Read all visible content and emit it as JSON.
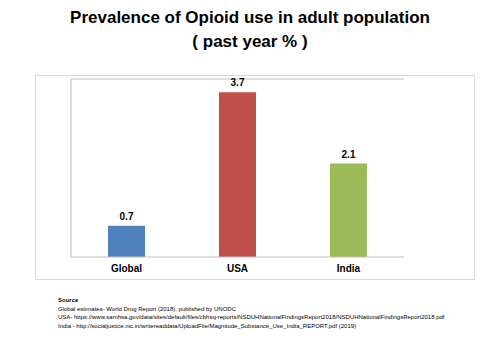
{
  "chart_data": {
    "type": "bar",
    "title": "Prevalence of Opioid use in adult population",
    "subtitle": "( past year % )",
    "categories": [
      "Global",
      "USA",
      "India"
    ],
    "values": [
      0.7,
      3.7,
      2.1
    ],
    "colors": [
      "#4f81bd",
      "#c0504d",
      "#9bbb59"
    ],
    "ylim": [
      0,
      4
    ],
    "grid": false,
    "data_labels": true,
    "tick_labels": "x",
    "annotations": [
      "Source",
      "Global estimates-  World Drug Report (2018), published by UNODC",
      "USA- https://www.samhsa.gov/data/sites/default/files/cbhsq-reports/NSDUHNationalFindingsReport2018/NSDUHNationalFindingsReport2018.pdf",
      "India  - http://socialjustice.nic.in/writereaddata/UploadFile/Magnitude_Substance_Use_India_REPORT.pdf (2019)"
    ]
  }
}
